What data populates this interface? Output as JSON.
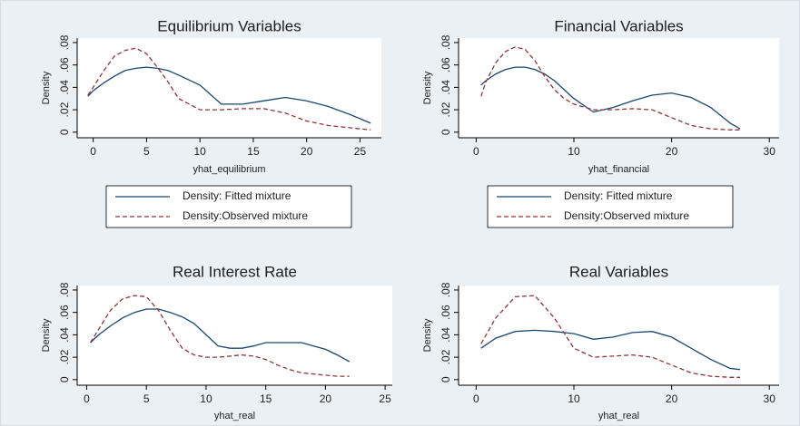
{
  "chart_data": [
    {
      "type": "line",
      "title": "Equilibrium Variables",
      "xlabel": "yhat_equilibrium",
      "ylabel": "Density",
      "x": [
        -0.5,
        0,
        1,
        2,
        3,
        4,
        5,
        6,
        7,
        8,
        10,
        12,
        14,
        16,
        18,
        20,
        22,
        24,
        26
      ],
      "series": [
        {
          "name": "Density: Fitted mixture",
          "color": "#1a476f",
          "dash": false,
          "values": [
            0.032,
            0.037,
            0.044,
            0.05,
            0.055,
            0.057,
            0.058,
            0.057,
            0.055,
            0.051,
            0.042,
            0.025,
            0.025,
            0.028,
            0.031,
            0.028,
            0.023,
            0.016,
            0.008
          ]
        },
        {
          "name": "Density:Observed mixture",
          "color": "#90353b",
          "dash": true,
          "values": [
            0.033,
            0.04,
            0.055,
            0.068,
            0.073,
            0.075,
            0.07,
            0.058,
            0.045,
            0.03,
            0.02,
            0.02,
            0.021,
            0.021,
            0.017,
            0.01,
            0.006,
            0.004,
            0.002
          ]
        }
      ],
      "xlim": [
        -1.5,
        27
      ],
      "xticks": [
        0,
        5,
        10,
        15,
        20,
        25
      ],
      "ylim": [
        -0.005,
        0.084
      ],
      "yticks": [
        0,
        {
          "value": 0.02,
          "label": ".02"
        },
        {
          "value": 0.04,
          "label": ".04"
        },
        {
          "value": 0.06,
          "label": ".06"
        },
        {
          "value": 0.08,
          "label": ".08"
        }
      ],
      "legend": "bottom"
    },
    {
      "type": "line",
      "title": "Financial Variables",
      "xlabel": "yhat_financial",
      "ylabel": "Density",
      "x": [
        0.5,
        1,
        2,
        3,
        4,
        5,
        6,
        7,
        8,
        9,
        10,
        12,
        14,
        16,
        18,
        20,
        22,
        24,
        26,
        27
      ],
      "series": [
        {
          "name": "Density: Fitted mixture",
          "color": "#1a476f",
          "dash": false,
          "values": [
            0.042,
            0.046,
            0.052,
            0.056,
            0.058,
            0.058,
            0.056,
            0.052,
            0.046,
            0.038,
            0.03,
            0.018,
            0.022,
            0.028,
            0.033,
            0.035,
            0.031,
            0.022,
            0.008,
            0.003
          ]
        },
        {
          "name": "Density:Observed mixture",
          "color": "#90353b",
          "dash": true,
          "values": [
            0.032,
            0.045,
            0.062,
            0.072,
            0.076,
            0.074,
            0.064,
            0.05,
            0.038,
            0.03,
            0.025,
            0.02,
            0.02,
            0.021,
            0.02,
            0.013,
            0.006,
            0.003,
            0.002,
            0.002
          ]
        }
      ],
      "xlim": [
        -1.8,
        31
      ],
      "xticks": [
        0,
        10,
        20,
        30
      ],
      "ylim": [
        -0.005,
        0.084
      ],
      "yticks": [
        0,
        {
          "value": 0.02,
          "label": ".02"
        },
        {
          "value": 0.04,
          "label": ".04"
        },
        {
          "value": 0.06,
          "label": ".06"
        },
        {
          "value": 0.08,
          "label": ".08"
        }
      ],
      "legend": "bottom"
    },
    {
      "type": "line",
      "title": "Real Interest Rate",
      "xlabel": "yhat_real",
      "ylabel": "Density",
      "x": [
        0.3,
        1,
        2,
        3,
        4,
        5,
        6,
        7,
        8,
        9,
        10,
        11,
        12,
        13,
        14,
        15,
        16,
        17,
        18,
        19,
        20,
        21,
        22
      ],
      "series": [
        {
          "name": "Density: Fitted mixture",
          "color": "#1a476f",
          "dash": false,
          "values": [
            0.033,
            0.04,
            0.048,
            0.055,
            0.06,
            0.063,
            0.063,
            0.06,
            0.056,
            0.05,
            0.04,
            0.03,
            0.028,
            0.028,
            0.03,
            0.033,
            0.033,
            0.033,
            0.033,
            0.03,
            0.027,
            0.022,
            0.016
          ]
        },
        {
          "name": "Density:Observed mixture",
          "color": "#90353b",
          "dash": true,
          "values": [
            0.033,
            0.045,
            0.062,
            0.072,
            0.075,
            0.074,
            0.062,
            0.044,
            0.028,
            0.022,
            0.02,
            0.02,
            0.021,
            0.022,
            0.021,
            0.018,
            0.013,
            0.009,
            0.006,
            0.005,
            0.004,
            0.003,
            0.003
          ]
        }
      ],
      "xlim": [
        -0.8,
        25.6
      ],
      "xticks": [
        0,
        5,
        10,
        15,
        20,
        25
      ],
      "ylim": [
        -0.005,
        0.084
      ],
      "yticks": [
        0,
        {
          "value": 0.02,
          "label": ".02"
        },
        {
          "value": 0.04,
          "label": ".04"
        },
        {
          "value": 0.06,
          "label": ".06"
        },
        {
          "value": 0.08,
          "label": ".08"
        }
      ]
    },
    {
      "type": "line",
      "title": "Real Variables",
      "xlabel": "yhat_real",
      "ylabel": "Density",
      "x": [
        0.5,
        2,
        4,
        6,
        8,
        10,
        12,
        14,
        16,
        18,
        20,
        22,
        24,
        26,
        27
      ],
      "series": [
        {
          "name": "Density: Fitted mixture",
          "color": "#1a476f",
          "dash": false,
          "values": [
            0.028,
            0.037,
            0.043,
            0.044,
            0.043,
            0.041,
            0.036,
            0.038,
            0.042,
            0.043,
            0.038,
            0.028,
            0.018,
            0.01,
            0.009
          ]
        },
        {
          "name": "Density:Observed mixture",
          "color": "#90353b",
          "dash": true,
          "values": [
            0.032,
            0.055,
            0.074,
            0.075,
            0.055,
            0.028,
            0.02,
            0.021,
            0.022,
            0.02,
            0.013,
            0.006,
            0.003,
            0.002,
            0.002
          ]
        }
      ],
      "xlim": [
        -1.8,
        31
      ],
      "xticks": [
        0,
        10,
        20,
        30
      ],
      "ylim": [
        -0.005,
        0.084
      ],
      "yticks": [
        0,
        {
          "value": 0.02,
          "label": ".02"
        },
        {
          "value": 0.04,
          "label": ".04"
        },
        {
          "value": 0.06,
          "label": ".06"
        },
        {
          "value": 0.08,
          "label": ".08"
        }
      ]
    }
  ]
}
